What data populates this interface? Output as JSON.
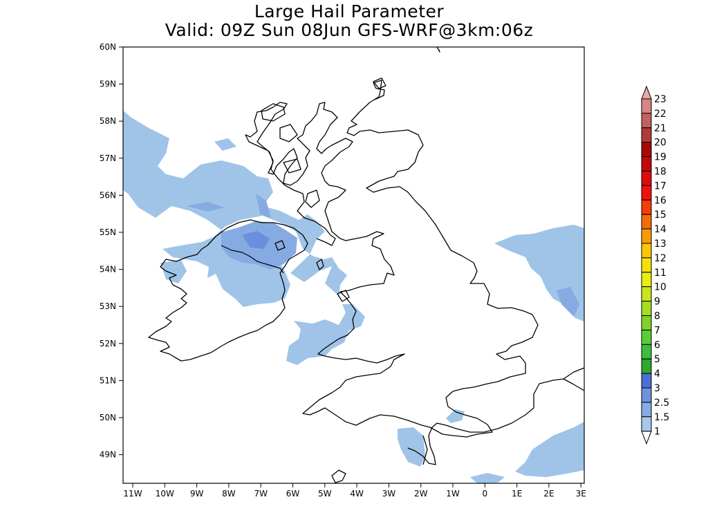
{
  "title": {
    "line1": "Large Hail Parameter",
    "line2": "Valid: 09Z Sun 08Jun GFS-WRF@3km:06z"
  },
  "map": {
    "lat_labels": [
      "60N",
      "59N",
      "58N",
      "57N",
      "56N",
      "55N",
      "54N",
      "53N",
      "52N",
      "51N",
      "50N",
      "49N"
    ],
    "lon_labels": [
      "11W",
      "10W",
      "9W",
      "8W",
      "7W",
      "6W",
      "5W",
      "4W",
      "3W",
      "2W",
      "1W",
      "0",
      "1E",
      "2E",
      "3E"
    ],
    "fill_colors": {
      "level1": "#9fc4e8",
      "level1_5": "#86abe3",
      "level2_5": "#6a8fdc"
    }
  },
  "colorbar": {
    "labels": [
      "1",
      "1.5",
      "2.5",
      "3",
      "4",
      "5",
      "6",
      "7",
      "8",
      "9",
      "10",
      "11",
      "12",
      "13",
      "14",
      "15",
      "16",
      "17",
      "18",
      "19",
      "20",
      "21",
      "22",
      "23"
    ],
    "colors": [
      "#a5c8ec",
      "#86abe3",
      "#6e92dd",
      "#4b6fd4",
      "#2fa830",
      "#3dbd3d",
      "#5ccc33",
      "#80d22b",
      "#a6dd1f",
      "#c8e619",
      "#e6ee12",
      "#f5e10a",
      "#fbc606",
      "#f99a05",
      "#f46c05",
      "#f43c08",
      "#f01111",
      "#dd0b0b",
      "#c20808",
      "#a60808",
      "#b03b3b",
      "#c46060",
      "#d58686",
      "#e4a9a9"
    ]
  }
}
